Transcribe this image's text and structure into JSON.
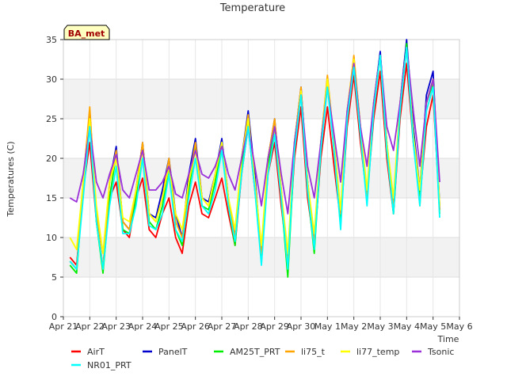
{
  "chart_data": {
    "type": "line",
    "title": "Temperature",
    "xlabel": "Time",
    "ylabel": "Temperatures (C)",
    "badge": "BA_met",
    "ylim": [
      0,
      35
    ],
    "yticks": [
      0,
      5,
      10,
      15,
      20,
      25,
      30,
      35
    ],
    "xlim": [
      0,
      15
    ],
    "xticks": [
      {
        "v": 0,
        "label": "Apr 21"
      },
      {
        "v": 1,
        "label": "Apr 22"
      },
      {
        "v": 2,
        "label": "Apr 23"
      },
      {
        "v": 3,
        "label": "Apr 24"
      },
      {
        "v": 4,
        "label": "Apr 25"
      },
      {
        "v": 5,
        "label": "Apr 26"
      },
      {
        "v": 6,
        "label": "Apr 27"
      },
      {
        "v": 7,
        "label": "Apr 28"
      },
      {
        "v": 8,
        "label": "Apr 29"
      },
      {
        "v": 9,
        "label": "Apr 30"
      },
      {
        "v": 10,
        "label": "May 1"
      },
      {
        "v": 11,
        "label": "May 2"
      },
      {
        "v": 12,
        "label": "May 3"
      },
      {
        "v": 13,
        "label": "May 4"
      },
      {
        "v": 14,
        "label": "May 5"
      },
      {
        "v": 15,
        "label": "May 6"
      }
    ],
    "grid": true,
    "legend_position": "bottom",
    "x": [
      0.25,
      0.5,
      0.75,
      1.0,
      1.25,
      1.5,
      1.75,
      2.0,
      2.25,
      2.5,
      2.75,
      3.0,
      3.25,
      3.5,
      3.75,
      4.0,
      4.25,
      4.5,
      4.75,
      5.0,
      5.25,
      5.5,
      5.75,
      6.0,
      6.25,
      6.5,
      6.75,
      7.0,
      7.25,
      7.5,
      7.75,
      8.0,
      8.25,
      8.5,
      8.75,
      9.0,
      9.25,
      9.5,
      9.75,
      10.0,
      10.25,
      10.5,
      10.75,
      11.0,
      11.25,
      11.5,
      11.75,
      12.0,
      12.25,
      12.5,
      12.75,
      13.0,
      13.25,
      13.5,
      13.75,
      14.0,
      14.25
    ],
    "series": [
      {
        "name": "AirT",
        "color": "#ff0000",
        "values": [
          7.5,
          6.5,
          16,
          22,
          12,
          6,
          15,
          17,
          11,
          10,
          15,
          17.5,
          11,
          10,
          13,
          15,
          10,
          8,
          14,
          17,
          13,
          12.5,
          15,
          17.5,
          13,
          9,
          18,
          24,
          16,
          8,
          18,
          22,
          14,
          7,
          20,
          26.5,
          15,
          9,
          20,
          26.5,
          19,
          12,
          24,
          30.5,
          22,
          15,
          25,
          31,
          20,
          13,
          25,
          32,
          22,
          15,
          24,
          28,
          13.5
        ]
      },
      {
        "name": "PanelT",
        "color": "#0000cc",
        "values": [
          7,
          6,
          17,
          26,
          13,
          6,
          17,
          21.5,
          12,
          11,
          16,
          22,
          13,
          12.5,
          16,
          20,
          13,
          10,
          18,
          22.5,
          15,
          14.5,
          18,
          22.5,
          15,
          10,
          20,
          26,
          18,
          7.5,
          20,
          25,
          16,
          6,
          22,
          29,
          17,
          9.5,
          22,
          30,
          22,
          13,
          26,
          32.5,
          24,
          15,
          27,
          33.5,
          22,
          14,
          27,
          35,
          24,
          16,
          28,
          31,
          14
        ]
      },
      {
        "name": "AM25T_PRT",
        "color": "#00ee00",
        "values": [
          6.5,
          5.5,
          16,
          25,
          12,
          5.5,
          15,
          20.5,
          11,
          10.5,
          15,
          21.5,
          12,
          11,
          14,
          19,
          11,
          9,
          16,
          21.5,
          14,
          13.5,
          17,
          22,
          14,
          9,
          19,
          25,
          17,
          7,
          19,
          24,
          15,
          5,
          21,
          28.5,
          16,
          8,
          21,
          29.5,
          21,
          12,
          25,
          32,
          23,
          15,
          26,
          33,
          21,
          13,
          26,
          34.5,
          23,
          15,
          27,
          29.5,
          13
        ]
      },
      {
        "name": "li75_t",
        "color": "#ffa500",
        "values": [
          7,
          6,
          17,
          26.5,
          13,
          6,
          17,
          21,
          12,
          11,
          16,
          22,
          13,
          12,
          15,
          20,
          12,
          10,
          17,
          22,
          15,
          14,
          18,
          22,
          15,
          10,
          20,
          25.5,
          17,
          8,
          20,
          25,
          16,
          7,
          22,
          29,
          17,
          9.5,
          22,
          30.5,
          22,
          13,
          26,
          33,
          24,
          15,
          27,
          33,
          21,
          14,
          27,
          34,
          23,
          14,
          27,
          30,
          13.5
        ]
      },
      {
        "name": "li77_temp",
        "color": "#ffff00",
        "values": [
          10,
          8.5,
          17,
          25,
          14,
          8,
          17,
          20,
          12.5,
          12,
          16,
          21,
          13,
          12,
          15,
          19,
          13,
          11,
          17,
          21,
          15,
          14,
          18,
          22,
          15,
          11,
          20,
          25,
          17,
          9,
          20,
          24,
          16,
          8,
          22,
          28.5,
          17,
          10.5,
          22,
          30,
          22,
          13.5,
          26,
          32.5,
          24,
          16,
          27,
          33,
          22,
          15,
          27,
          34,
          23,
          16,
          27,
          30,
          14
        ]
      },
      {
        "name": "Tsonic",
        "color": "#9b30d9",
        "values": [
          15,
          14.5,
          18,
          24,
          17,
          15,
          18,
          20.5,
          16,
          15,
          18,
          21,
          16,
          16,
          17,
          19,
          15.5,
          15,
          18,
          21,
          18,
          17.5,
          19,
          21.5,
          18,
          16,
          20,
          24,
          19,
          14,
          20,
          24,
          18,
          13,
          22,
          28,
          19,
          15,
          22,
          29,
          23,
          17,
          26,
          32,
          24,
          19,
          27,
          33,
          24,
          21,
          27,
          34,
          26,
          19,
          27,
          30,
          17
        ]
      },
      {
        "name": "NR01_PRT",
        "color": "#00ffff",
        "values": [
          7,
          6,
          15,
          24,
          12,
          6,
          14,
          19,
          10.5,
          10.5,
          14,
          20,
          11.5,
          11,
          13,
          18,
          11,
          9.5,
          15,
          20,
          14,
          13,
          16,
          21,
          14,
          9.5,
          18,
          24,
          16,
          6.5,
          18,
          23,
          15,
          6,
          21,
          28,
          16,
          8.5,
          21,
          29,
          21,
          11,
          25,
          31.5,
          23,
          14,
          26,
          33,
          21,
          13,
          26,
          34,
          22,
          14,
          26,
          29,
          12.5
        ]
      }
    ]
  }
}
